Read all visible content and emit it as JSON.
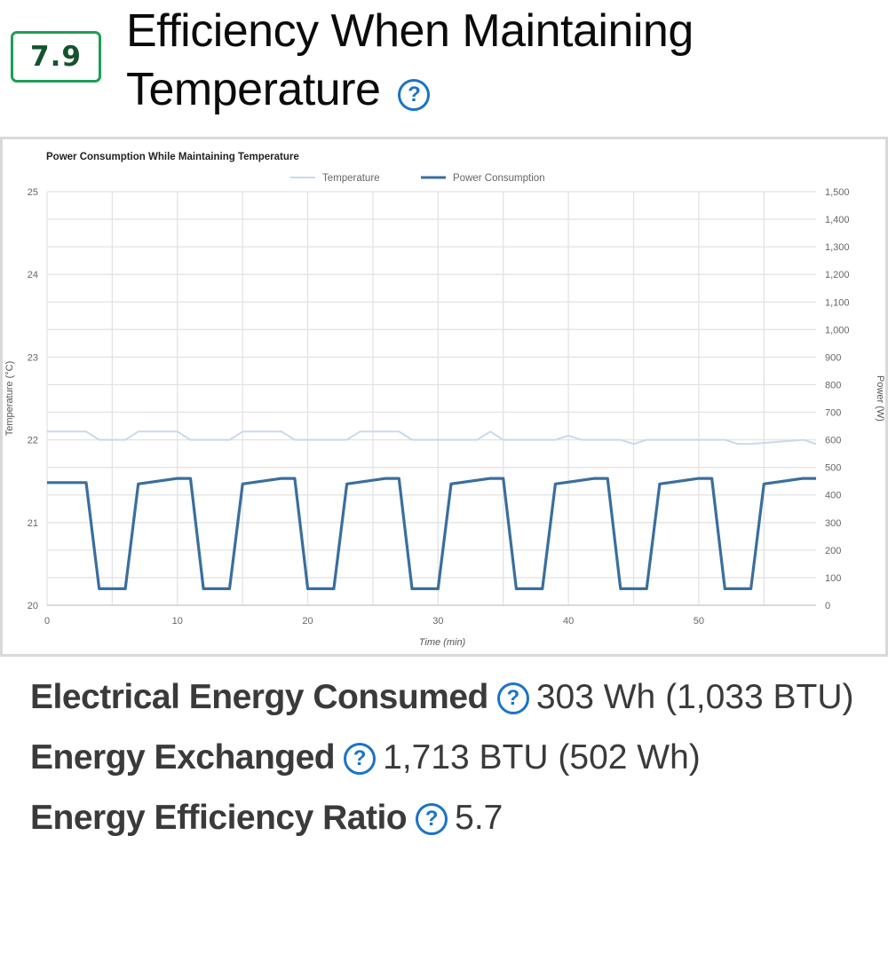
{
  "score": "7.9",
  "section_title": "Efficiency When Maintaining Temperature",
  "help_glyph": "?",
  "colors": {
    "accent_green": "#1f9d55",
    "help_blue": "#1a73c8",
    "power_line": "#3a6e9e",
    "temperature_line": "#c9d9ee"
  },
  "chart_data": {
    "type": "line",
    "title": "Power Consumption While Maintaining Temperature",
    "xlabel": "Time (min)",
    "ylabel": "Temperature (°C)",
    "y2label": "Power (W)",
    "xlim": [
      0,
      59
    ],
    "ylim": [
      20,
      25
    ],
    "y2lim": [
      0,
      1500
    ],
    "x_ticks": [
      "0",
      "10",
      "20",
      "30",
      "40",
      "50"
    ],
    "y_ticks": [
      "20",
      "21",
      "22",
      "23",
      "24",
      "25"
    ],
    "y2_ticks": [
      "0",
      "100",
      "200",
      "300",
      "400",
      "500",
      "600",
      "700",
      "800",
      "900",
      "1,000",
      "1,100",
      "1,200",
      "1,300",
      "1,400",
      "1,500"
    ],
    "legend_position": "top",
    "grid": true,
    "series": [
      {
        "name": "Temperature",
        "axis": "left",
        "x": [
          0,
          3,
          4,
          6,
          7,
          10,
          11,
          14,
          15,
          18,
          19,
          23,
          24,
          27,
          28,
          32,
          33,
          34,
          35,
          39,
          40,
          41,
          44,
          45,
          46,
          51,
          52,
          53,
          54,
          58,
          59
        ],
        "values": [
          22.1,
          22.1,
          22.0,
          22.0,
          22.1,
          22.1,
          22.0,
          22.0,
          22.1,
          22.1,
          22.0,
          22.0,
          22.1,
          22.1,
          22.0,
          22.0,
          22.0,
          22.1,
          22.0,
          22.0,
          22.05,
          22.0,
          22.0,
          21.95,
          22.0,
          22.0,
          22.0,
          21.95,
          21.95,
          22.0,
          21.95
        ]
      },
      {
        "name": "Power Consumption",
        "axis": "right",
        "x": [
          0,
          3,
          4,
          6,
          7,
          10,
          11,
          12,
          14,
          15,
          18,
          19,
          20,
          22,
          23,
          26,
          27,
          28,
          30,
          31,
          34,
          35,
          36,
          38,
          39,
          42,
          43,
          44,
          46,
          47,
          50,
          51,
          52,
          54,
          55,
          58,
          59
        ],
        "values": [
          445,
          445,
          60,
          60,
          440,
          460,
          460,
          60,
          60,
          440,
          460,
          460,
          60,
          60,
          440,
          460,
          460,
          60,
          60,
          440,
          460,
          460,
          60,
          60,
          440,
          460,
          460,
          60,
          60,
          440,
          460,
          460,
          60,
          60,
          440,
          460,
          460
        ]
      }
    ]
  },
  "stats": [
    {
      "label": "Electrical Energy Consumed",
      "value": "303 Wh (1,033 BTU)"
    },
    {
      "label": "Energy Exchanged",
      "value": "1,713 BTU (502 Wh)"
    },
    {
      "label": "Energy Efficiency Ratio",
      "value": "5.7"
    }
  ]
}
